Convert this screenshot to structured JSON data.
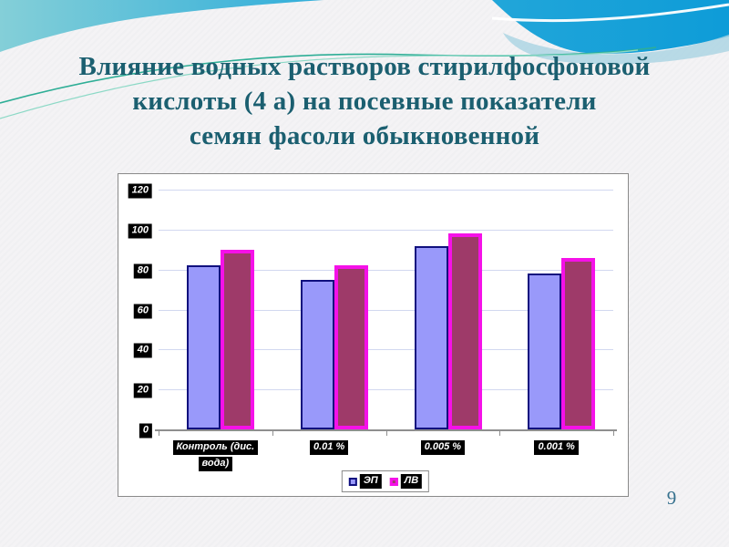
{
  "slide": {
    "title_lines": [
      "Влияние водных растворов стирилфосфоновой",
      "кислоты (4 а) на посевные показатели",
      "семян фасоли обыкновенной"
    ],
    "page_number": "9"
  },
  "chart_data": {
    "type": "bar",
    "title": "",
    "xlabel": "",
    "ylabel": "",
    "categories": [
      "Контроль (дис. вода)",
      "0.01 %",
      "0.005 %",
      "0.001 %"
    ],
    "category_label_lines": [
      [
        "Контроль (дис.",
        "вода)"
      ],
      [
        "0.01 %"
      ],
      [
        "0.005 %"
      ],
      [
        "0.001 %"
      ]
    ],
    "series": [
      {
        "name": "ЭП",
        "values": [
          82,
          75,
          92,
          78
        ],
        "fill": "#9999FA",
        "border": "#10107E",
        "border_width": 2
      },
      {
        "name": "ЛВ",
        "values": [
          90,
          82,
          98,
          86
        ],
        "fill": "#9E3A69",
        "border": "#F511E8",
        "border_width": 4
      }
    ],
    "yticks": [
      0,
      20,
      40,
      60,
      80,
      100,
      120
    ],
    "ylim": [
      0,
      120
    ],
    "grid": true,
    "legend_position": "bottom-center",
    "plot_background": "#FFFFFF"
  },
  "colors": {
    "title_text": "#1B5F70",
    "page_number_text": "#36718E",
    "chart_border": "#8A8A8A",
    "gridline": "#D2D8F0",
    "axis_line": "#8F8F8F",
    "label_chip_background": "#000000",
    "label_chip_text": "#FFFFFF",
    "header_teal_light": "#84CFD8",
    "header_blue": "#0E9CD8",
    "header_underlay": "#A9D3E2",
    "accent_line_green": "#2EAE96"
  }
}
